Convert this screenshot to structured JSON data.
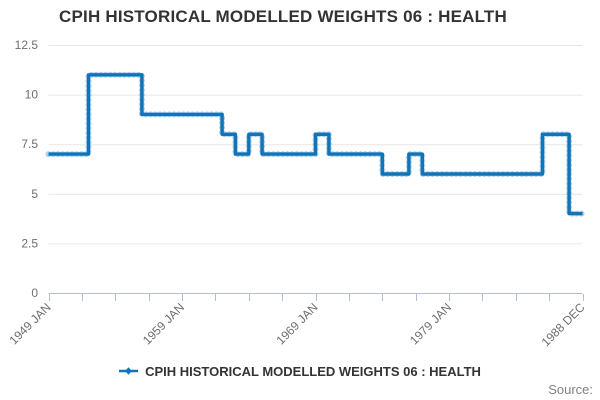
{
  "title": "CPIH HISTORICAL MODELLED WEIGHTS 06 : HEALTH",
  "legend": {
    "label": "CPIH HISTORICAL MODELLED WEIGHTS 06 : HEALTH"
  },
  "footer": {
    "source_label": "Source:"
  },
  "chart_data": {
    "type": "line",
    "step": "left",
    "title": "CPIH HISTORICAL MODELLED WEIGHTS 06 : HEALTH",
    "xlabel": "",
    "ylabel": "",
    "grid": "horizontal-only",
    "legend_position": "bottom-center",
    "years": [
      1949,
      1950,
      1951,
      1952,
      1953,
      1954,
      1955,
      1956,
      1957,
      1958,
      1959,
      1960,
      1961,
      1962,
      1963,
      1964,
      1965,
      1966,
      1967,
      1968,
      1969,
      1970,
      1971,
      1972,
      1973,
      1974,
      1975,
      1976,
      1977,
      1978,
      1979,
      1980,
      1981,
      1982,
      1983,
      1984,
      1985,
      1986,
      1987,
      1988
    ],
    "values": [
      7,
      7,
      7,
      11,
      11,
      11,
      11,
      9,
      9,
      9,
      9,
      9,
      9,
      8,
      7,
      8,
      7,
      7,
      7,
      7,
      8,
      7,
      7,
      7,
      7,
      6,
      6,
      7,
      6,
      6,
      6,
      6,
      6,
      6,
      6,
      6,
      6,
      8,
      8,
      4
    ],
    "xlim": [
      1949,
      1989
    ],
    "ylim": [
      0,
      12.5
    ],
    "yticks": [
      0,
      2.5,
      5,
      7.5,
      10,
      12.5
    ],
    "ytick_labels": [
      "0",
      "2.5",
      "5",
      "7.5",
      "10",
      "12.5"
    ],
    "xtick_interval_years": 2.5,
    "xtick_labels": [
      {
        "pos": 1949,
        "label": "1949 JAN"
      },
      {
        "pos": 1959,
        "label": "1959 JAN"
      },
      {
        "pos": 1969,
        "label": "1969 JAN"
      },
      {
        "pos": 1979,
        "label": "1979 JAN"
      },
      {
        "pos": 1989,
        "label": "1988 DEC"
      }
    ],
    "colors": {
      "line": "#1274b8",
      "marker": "#5fa5d7",
      "grid": "#e6e6e6",
      "axis": "#b0bed7",
      "tick_text": "#6e6e6e",
      "title_text": "#333333",
      "source_text": "#818181"
    }
  }
}
